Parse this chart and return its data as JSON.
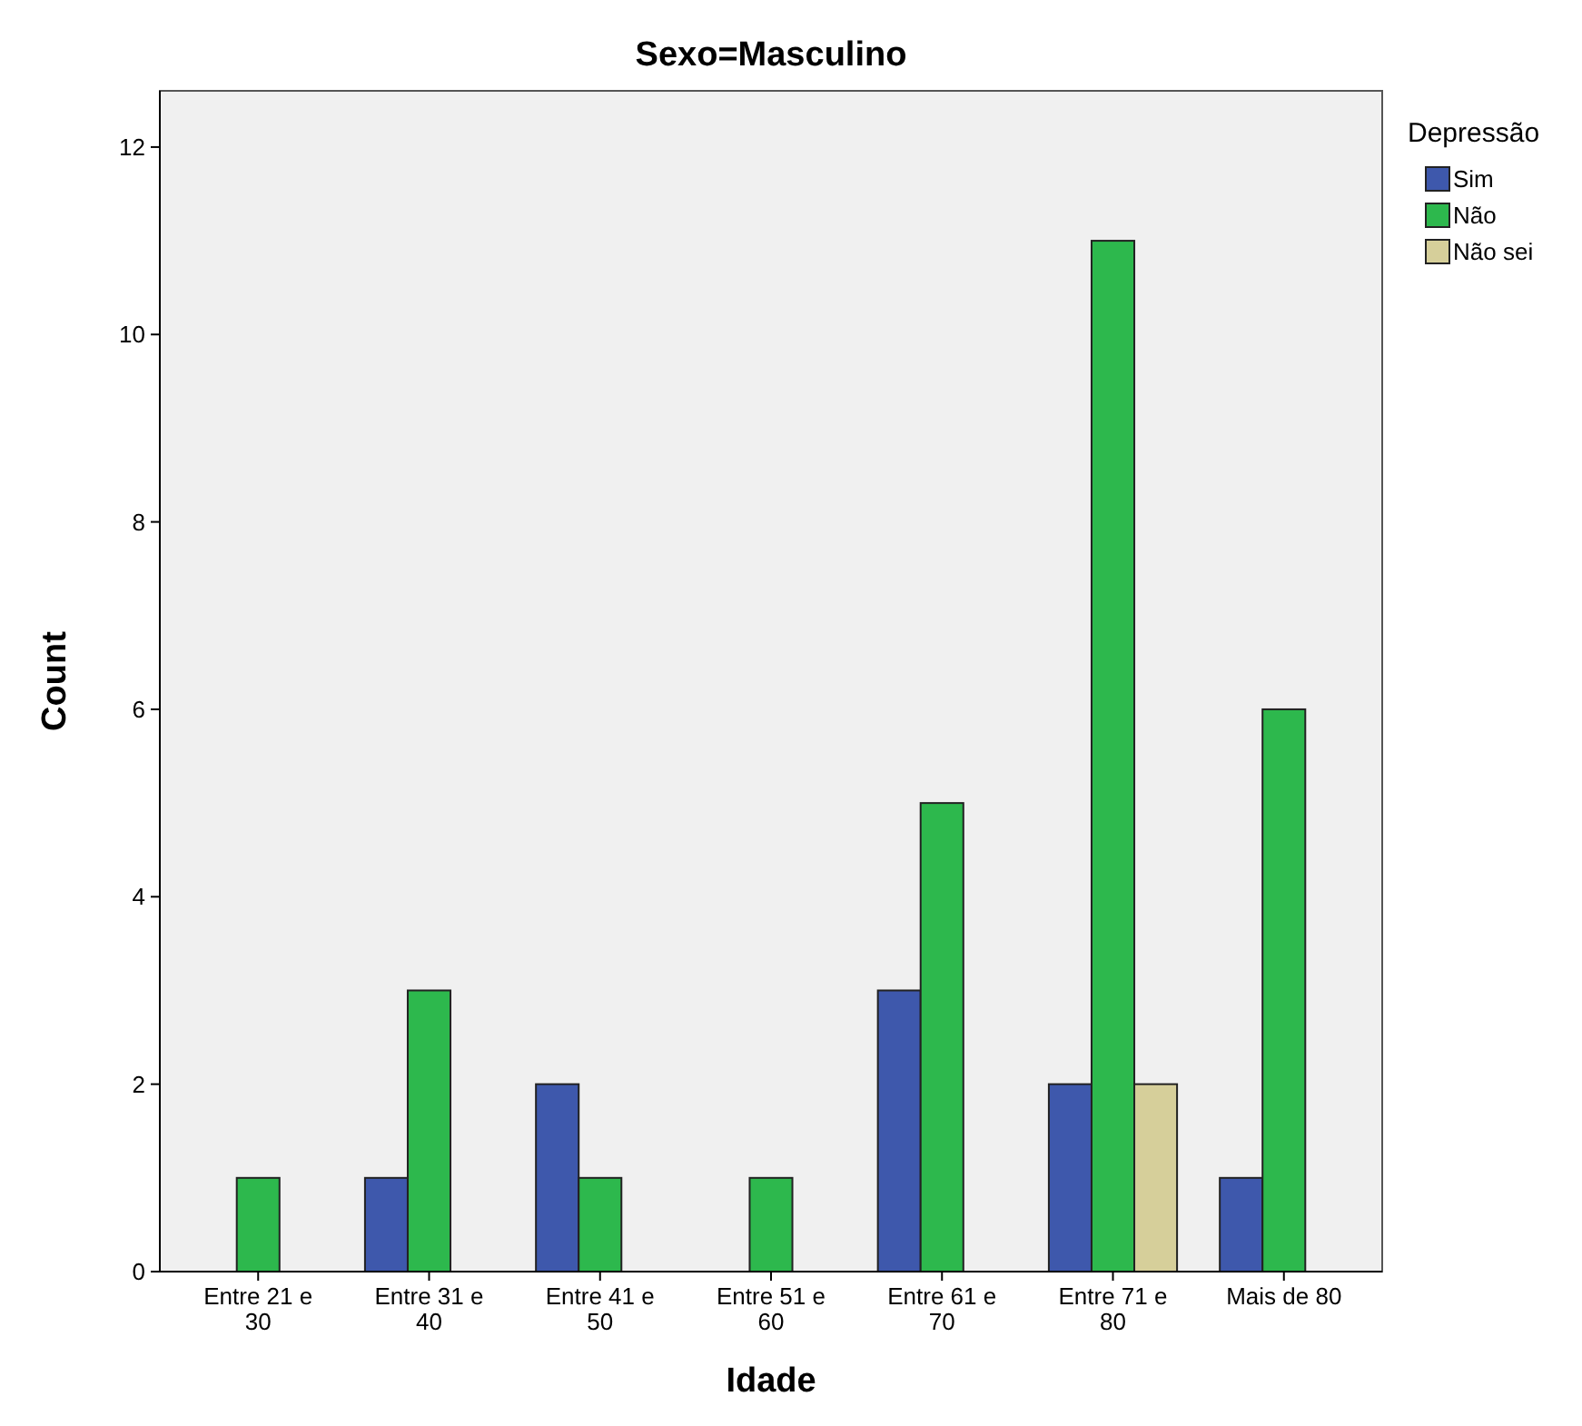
{
  "chart_data": {
    "type": "bar",
    "title": "Sexo=Masculino",
    "xlabel": "Idade",
    "ylabel": "Count",
    "legend_title": "Depressão",
    "categories": [
      "Entre 21 e 30",
      "Entre 31 e 40",
      "Entre 41 e 50",
      "Entre 51 e 60",
      "Entre 61 e 70",
      "Entre 71 e 80",
      "Mais de 80"
    ],
    "series": [
      {
        "name": "Sim",
        "color": "#3e58ac",
        "values": [
          null,
          1,
          2,
          null,
          3,
          2,
          1
        ]
      },
      {
        "name": "Não",
        "color": "#2db84d",
        "values": [
          1,
          3,
          1,
          1,
          5,
          11,
          6
        ]
      },
      {
        "name": "Não sei",
        "color": "#d6cf9a",
        "values": [
          null,
          null,
          null,
          null,
          null,
          2,
          null
        ]
      }
    ],
    "ylim": [
      0,
      12.6
    ],
    "yticks": [
      0,
      2,
      4,
      6,
      8,
      10,
      12
    ],
    "grid": false,
    "legend": "top right"
  }
}
